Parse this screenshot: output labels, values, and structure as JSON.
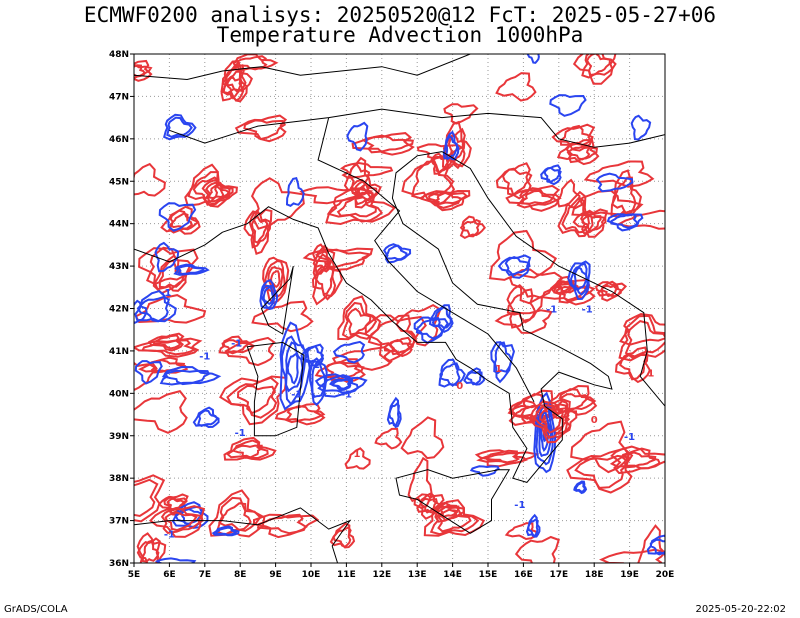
{
  "header": {
    "title_line1": "ECMWF0200 analisys: 20250520@12 FcT: 2025-05-27+06",
    "title_line2": "Temperature Advection 1000hPa"
  },
  "footer": {
    "left": "GrADS/COLA",
    "right": "2025-05-20-22:02"
  },
  "map": {
    "lon_labels": [
      "5E",
      "6E",
      "7E",
      "8E",
      "9E",
      "10E",
      "11E",
      "12E",
      "13E",
      "14E",
      "15E",
      "16E",
      "17E",
      "18E",
      "19E",
      "20E"
    ],
    "lat_labels": [
      "48N",
      "47N",
      "46N",
      "45N",
      "44N",
      "43N",
      "42N",
      "41N",
      "40N",
      "39N",
      "38N",
      "37N",
      "36N"
    ],
    "lon_range": [
      5,
      20
    ],
    "lat_range": [
      36,
      48
    ],
    "contour_labels": [
      "-1",
      "-1",
      "-1",
      "-1",
      "-1",
      "-1",
      "-1",
      "-1",
      "-1",
      "-2",
      "-1",
      "1",
      "1",
      "0",
      "0",
      "-1",
      "1"
    ],
    "colors": {
      "warm": "#e8363a",
      "cold": "#2a45f0",
      "coast": "#000000",
      "grid": "#9a9a9a"
    }
  }
}
